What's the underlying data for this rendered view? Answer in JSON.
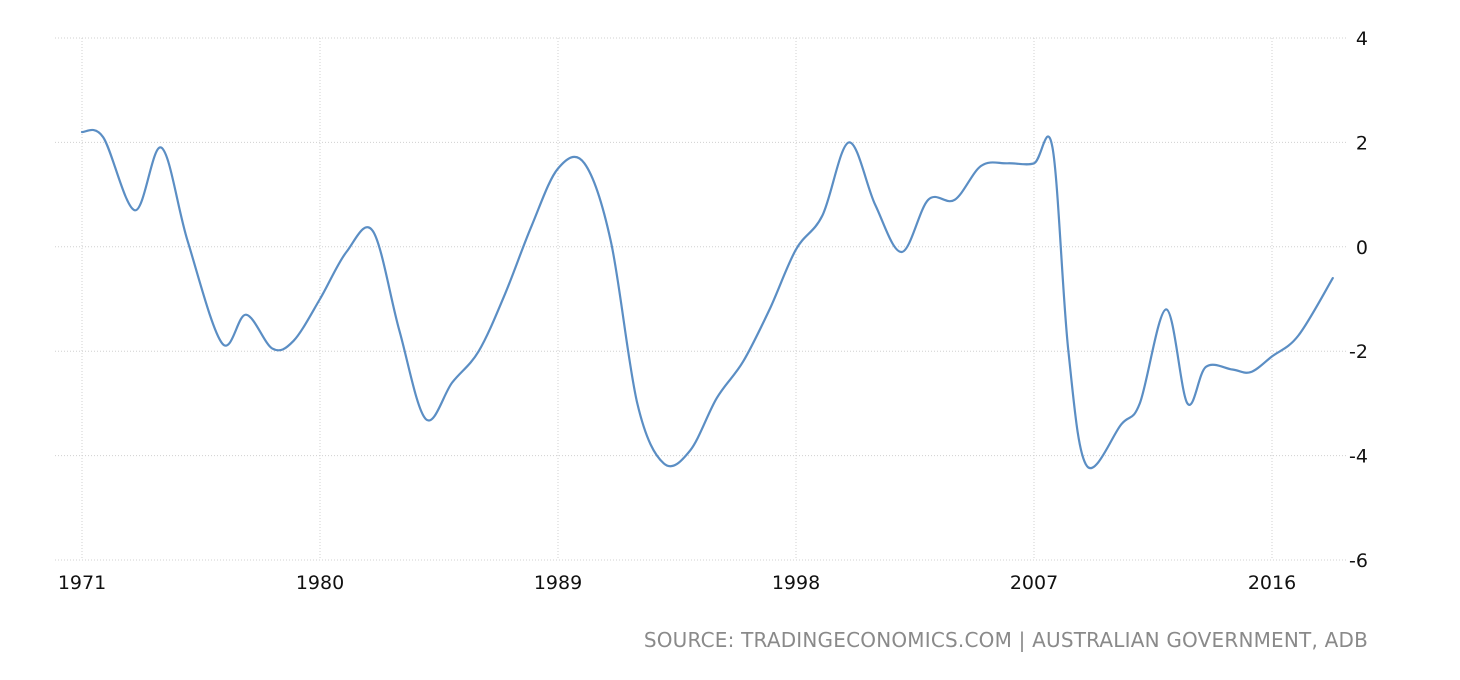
{
  "chart_data": {
    "type": "line",
    "title": "",
    "xlabel": "",
    "ylabel": "",
    "xlim": [
      1971,
      2019
    ],
    "ylim": [
      -6,
      4
    ],
    "x_ticks": [
      "1971",
      "1980",
      "1989",
      "1998",
      "2007",
      "2016"
    ],
    "y_ticks": [
      "4",
      "2",
      "0",
      "-2",
      "-4",
      "-6"
    ],
    "grid": true,
    "legend": "none",
    "line_color": "#5b8ec4",
    "grid_color": "#d0d0d0",
    "series": [
      {
        "x": [
          1971,
          1971.8,
          1973,
          1974,
          1975,
          1976.3,
          1977.2,
          1978.2,
          1979,
          1980,
          1981,
          1982,
          1983,
          1984,
          1985,
          1986,
          1987,
          1988,
          1989,
          1990,
          1991,
          1992,
          1993,
          1994,
          1995,
          1996,
          1997,
          1998,
          1999,
          2000,
          2001,
          2002,
          2003,
          2004,
          2005,
          2006,
          2007,
          2007.7,
          2008.3,
          2009,
          2010.3,
          2011,
          2012,
          2012.8,
          2013.5,
          2014.5,
          2015.2,
          2016,
          2017,
          2018.3
        ],
        "values": [
          2.2,
          2.1,
          0.7,
          1.9,
          0.1,
          -1.85,
          -1.3,
          -1.95,
          -1.8,
          -1.0,
          -0.1,
          0.3,
          -1.6,
          -3.3,
          -2.6,
          -2.0,
          -0.9,
          0.4,
          1.5,
          1.6,
          0.1,
          -3.0,
          -4.15,
          -3.9,
          -2.9,
          -2.2,
          -1.2,
          -0.05,
          0.6,
          2.0,
          0.8,
          -0.1,
          0.9,
          0.9,
          1.55,
          1.6,
          1.6,
          1.9,
          -2.0,
          -4.2,
          -3.4,
          -3.0,
          -1.2,
          -3.0,
          -2.3,
          -2.35,
          -2.4,
          -2.1,
          -1.7,
          -0.6
        ]
      }
    ]
  },
  "source": "SOURCE: TRADINGECONOMICS.COM | AUSTRALIAN GOVERNMENT, ADB"
}
